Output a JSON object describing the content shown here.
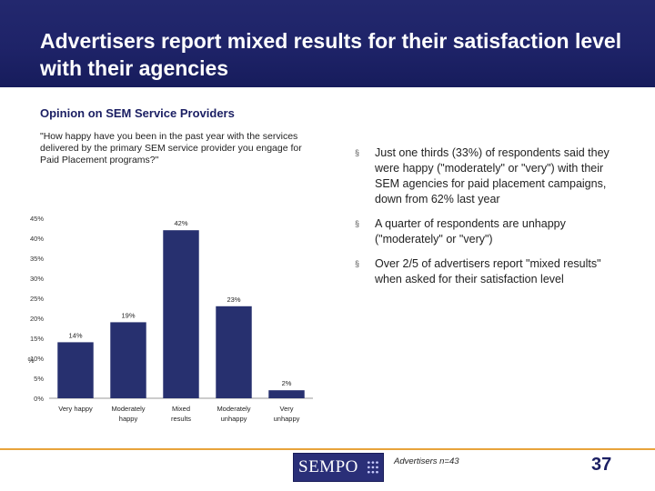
{
  "slide": {
    "title": "Advertisers report mixed results for their satisfaction level with their agencies",
    "subtitle": "Opinion on SEM Service Providers",
    "question": "\"How happy have you been in the past year with the services delivered by the primary SEM service provider you engage for Paid Placement programs?\"",
    "bullets": [
      "Just one thirds (33%) of respondents said they were happy (\"moderately\" or \"very\") with their SEM agencies for paid placement campaigns, down from 62% last year",
      "A quarter of respondents are unhappy (\"moderately\" or \"very\")",
      "Over 2/5 of advertisers report \"mixed results\" when asked for their satisfaction level"
    ],
    "bullet_mark": "§",
    "note": "Advertisers n=43",
    "page_number": "37",
    "logo_text": "SEMPO"
  },
  "colors": {
    "header_bg": "#1e2368",
    "bar": "#27306f",
    "accent_line": "#e8a33a"
  },
  "chart_data": {
    "type": "bar",
    "categories": [
      "Very happy",
      "Moderately happy",
      "Mixed results",
      "Moderately unhappy",
      "Very unhappy"
    ],
    "values": [
      14,
      19,
      42,
      23,
      2
    ],
    "data_labels": [
      "14%",
      "19%",
      "42%",
      "23%",
      "2%"
    ],
    "ylabel": "%",
    "ylim": [
      0,
      45
    ],
    "yticks": [
      "0%",
      "5%",
      "10%",
      "15%",
      "20%",
      "25%",
      "30%",
      "35%",
      "40%",
      "45%"
    ],
    "grid": false,
    "legend": "none"
  }
}
